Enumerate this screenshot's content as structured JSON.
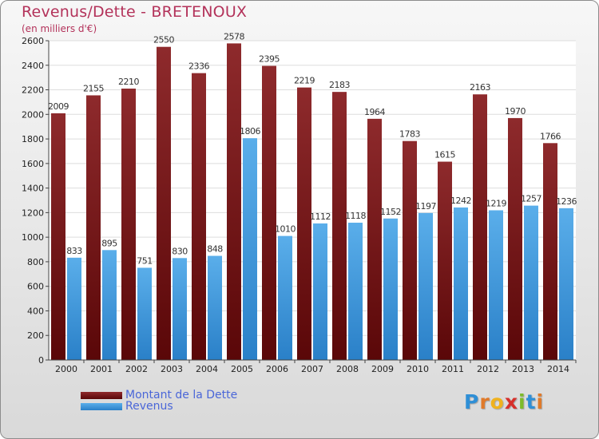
{
  "header": {
    "title": "Revenus/Dette - BRETENOUX",
    "subtitle": "(en milliers d'€)"
  },
  "legend": {
    "debt_label": "Montant de la Dette",
    "revenue_label": "Revenus"
  },
  "logo": {
    "letters": [
      "P",
      "r",
      "o",
      "x",
      "i",
      "t",
      "i"
    ],
    "colors": [
      "#2f8fd6",
      "#e07a2a",
      "#f0b21e",
      "#d6302b",
      "#7dbb2a",
      "#2f8fd6",
      "#e07a2a"
    ]
  },
  "colors": {
    "debt": "#7a1416",
    "revenue": "#3a98e0",
    "axis_text": "#222222",
    "grid": "#dddddd"
  },
  "chart_data": {
    "type": "bar",
    "title": "Revenus/Dette - BRETENOUX",
    "subtitle": "(en milliers d'€)",
    "categories": [
      "2000",
      "2001",
      "2002",
      "2003",
      "2004",
      "2005",
      "2006",
      "2007",
      "2008",
      "2009",
      "2010",
      "2011",
      "2012",
      "2013",
      "2014"
    ],
    "series": [
      {
        "name": "Montant de la Dette",
        "values": [
          2009,
          2155,
          2210,
          2550,
          2336,
          2578,
          2395,
          2219,
          2183,
          1964,
          1783,
          1615,
          2163,
          1970,
          1766
        ]
      },
      {
        "name": "Revenus",
        "values": [
          833,
          895,
          751,
          830,
          848,
          1806,
          1010,
          1112,
          1118,
          1152,
          1197,
          1242,
          1219,
          1257,
          1236
        ]
      }
    ],
    "ylim": [
      0,
      2600
    ],
    "yticks": [
      0,
      200,
      400,
      600,
      800,
      1000,
      1200,
      1400,
      1600,
      1800,
      2000,
      2200,
      2400,
      2600
    ],
    "grid": true,
    "legend_position": "bottom-left"
  }
}
